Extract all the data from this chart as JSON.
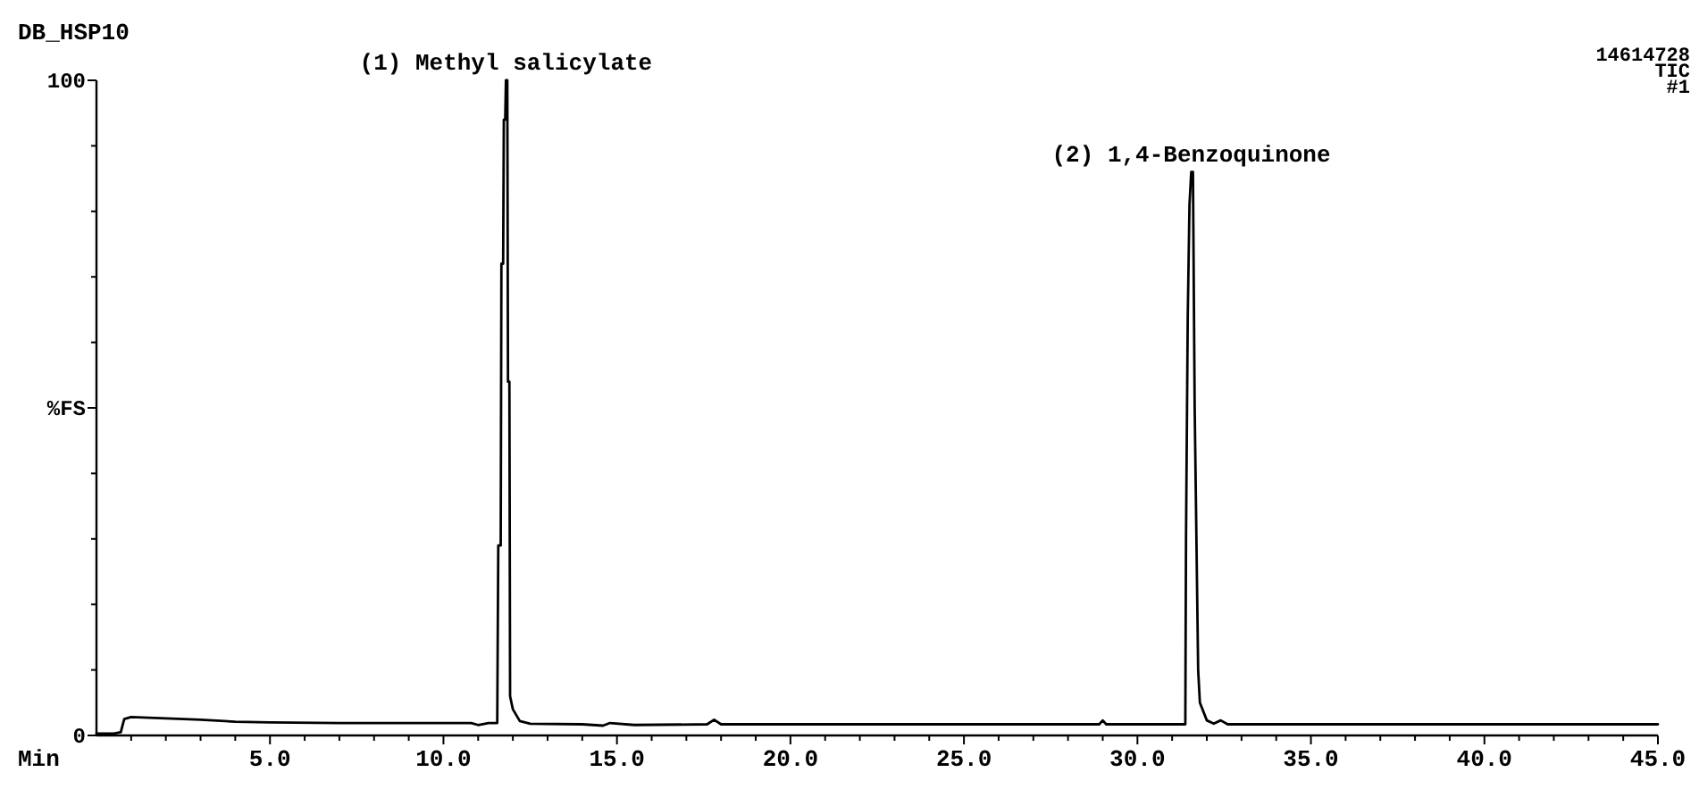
{
  "chart_data": {
    "type": "line",
    "title": "DB_HSP10",
    "xlabel": "Min",
    "annotations": [
      {
        "text": "(1) Methyl salicylate",
        "x": 11.8,
        "y": 100
      },
      {
        "text": "(2) 1,4-Benzoquinone",
        "x": 31.55,
        "y": 86
      },
      "14614728",
      "TIC",
      "#1"
    ],
    "series": [
      {
        "color": "#000000",
        "x": [
          0,
          0.5,
          0.7,
          0.8,
          1.0,
          2,
          3,
          4,
          5,
          7,
          9,
          10.8,
          11.0,
          11.3,
          11.55,
          11.58,
          11.65,
          11.67,
          11.72,
          11.74,
          11.78,
          11.8,
          11.84,
          11.86,
          11.9,
          11.92,
          12.0,
          12.2,
          12.5,
          14,
          14.6,
          14.8,
          15.5,
          17.6,
          17.8,
          18,
          22,
          26,
          28.9,
          29,
          29.1,
          31.3,
          31.38,
          31.4,
          31.45,
          31.5,
          31.55,
          31.6,
          31.65,
          31.7,
          31.75,
          31.8,
          32.0,
          32.2,
          32.4,
          32.6,
          36,
          40,
          45
        ],
        "values": [
          0.3,
          0.3,
          0.5,
          2.5,
          2.8,
          2.6,
          2.4,
          2.1,
          2,
          1.9,
          1.9,
          1.9,
          1.6,
          1.9,
          1.9,
          29,
          29,
          72,
          72,
          94,
          94,
          100,
          100,
          54,
          54,
          6,
          4,
          2.2,
          1.8,
          1.7,
          1.5,
          1.9,
          1.6,
          1.7,
          2.4,
          1.7,
          1.7,
          1.7,
          1.7,
          2.3,
          1.7,
          1.7,
          1.7,
          30,
          64,
          81,
          86,
          86,
          50,
          30,
          10,
          5,
          2.3,
          1.8,
          2.3,
          1.7,
          1.7,
          1.7,
          1.7
        ]
      }
    ],
    "xlim": [
      0,
      45
    ],
    "xticks": [
      {
        "value": 1,
        "label": null
      },
      {
        "value": 2,
        "label": null
      },
      {
        "value": 3,
        "label": null
      },
      {
        "value": 4,
        "label": null
      },
      {
        "value": 5,
        "label": "5.0"
      },
      {
        "value": 6,
        "label": null
      },
      {
        "value": 7,
        "label": null
      },
      {
        "value": 8,
        "label": null
      },
      {
        "value": 9,
        "label": null
      },
      {
        "value": 10,
        "label": "10.0"
      },
      {
        "value": 11,
        "label": null
      },
      {
        "value": 12,
        "label": null
      },
      {
        "value": 13,
        "label": null
      },
      {
        "value": 14,
        "label": null
      },
      {
        "value": 15,
        "label": "15.0"
      },
      {
        "value": 16,
        "label": null
      },
      {
        "value": 17,
        "label": null
      },
      {
        "value": 18,
        "label": null
      },
      {
        "value": 19,
        "label": null
      },
      {
        "value": 20,
        "label": "20.0"
      },
      {
        "value": 21,
        "label": null
      },
      {
        "value": 22,
        "label": null
      },
      {
        "value": 23,
        "label": null
      },
      {
        "value": 24,
        "label": null
      },
      {
        "value": 25,
        "label": "25.0"
      },
      {
        "value": 26,
        "label": null
      },
      {
        "value": 27,
        "label": null
      },
      {
        "value": 28,
        "label": null
      },
      {
        "value": 29,
        "label": null
      },
      {
        "value": 30,
        "label": "30.0"
      },
      {
        "value": 31,
        "label": null
      },
      {
        "value": 32,
        "label": null
      },
      {
        "value": 33,
        "label": null
      },
      {
        "value": 34,
        "label": null
      },
      {
        "value": 35,
        "label": "35.0"
      },
      {
        "value": 36,
        "label": null
      },
      {
        "value": 37,
        "label": null
      },
      {
        "value": 38,
        "label": null
      },
      {
        "value": 39,
        "label": null
      },
      {
        "value": 40,
        "label": "40.0"
      },
      {
        "value": 41,
        "label": null
      },
      {
        "value": 42,
        "label": null
      },
      {
        "value": 43,
        "label": null
      },
      {
        "value": 44,
        "label": null
      },
      {
        "value": 45,
        "label": "45.0"
      }
    ],
    "ylim": [
      0,
      100
    ],
    "yticks": [
      0,
      {
        "value": 10,
        "label": null
      },
      {
        "value": 20,
        "label": null
      },
      {
        "value": 30,
        "label": null
      },
      {
        "value": 40,
        "label": null
      },
      {
        "value": 50,
        "label": "%FS"
      },
      {
        "value": 60,
        "label": null
      },
      {
        "value": 70,
        "label": null
      },
      {
        "value": 80,
        "label": null
      },
      {
        "value": 90,
        "label": null
      },
      100
    ],
    "marker": "none",
    "line_style": "solid"
  }
}
